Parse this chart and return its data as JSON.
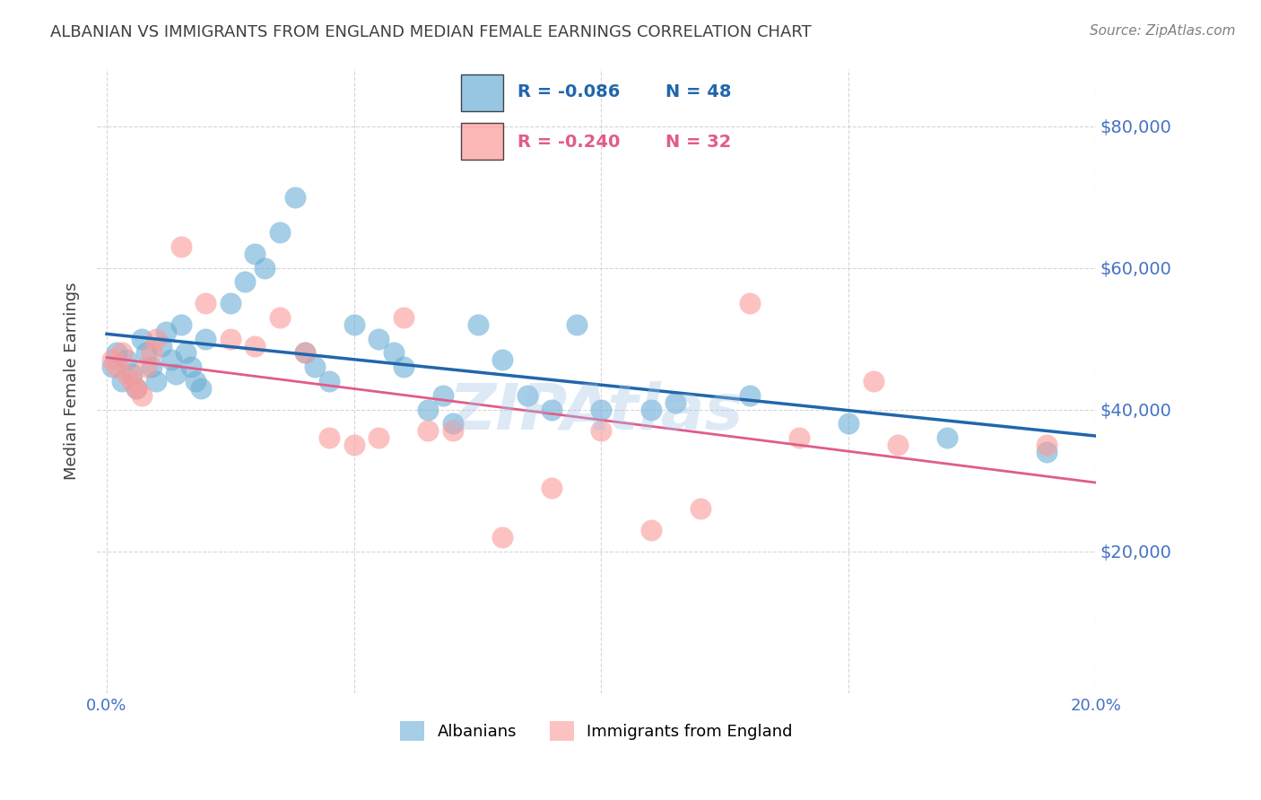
{
  "title": "ALBANIAN VS IMMIGRANTS FROM ENGLAND MEDIAN FEMALE EARNINGS CORRELATION CHART",
  "source": "Source: ZipAtlas.com",
  "xlabel": "",
  "ylabel": "Median Female Earnings",
  "watermark": "ZIPAtlas",
  "xlim": [
    0.0,
    0.2
  ],
  "ylim": [
    0,
    88000
  ],
  "yticks": [
    0,
    20000,
    40000,
    60000,
    80000
  ],
  "ytick_labels": [
    "",
    "$20,000",
    "$40,000",
    "$60,000",
    "$80,000"
  ],
  "xticks": [
    0.0,
    0.05,
    0.1,
    0.15,
    0.2
  ],
  "xtick_labels": [
    "0.0%",
    "",
    "",
    "",
    "20.0%"
  ],
  "legend_r1": "-0.086",
  "legend_n1": "48",
  "legend_r2": "-0.240",
  "legend_n2": "32",
  "label1": "Albanians",
  "label2": "Immigrants from England",
  "color1": "#6baed6",
  "color2": "#fb9a99",
  "line_color1": "#2166ac",
  "line_color2": "#e05c8a",
  "axis_color": "#4472c4",
  "title_color": "#404040",
  "grid_color": "#cccccc",
  "albanians_x": [
    0.001,
    0.002,
    0.003,
    0.004,
    0.005,
    0.006,
    0.007,
    0.008,
    0.009,
    0.01,
    0.011,
    0.012,
    0.013,
    0.014,
    0.015,
    0.016,
    0.017,
    0.018,
    0.019,
    0.02,
    0.025,
    0.028,
    0.03,
    0.032,
    0.035,
    0.038,
    0.04,
    0.042,
    0.045,
    0.05,
    0.055,
    0.058,
    0.06,
    0.065,
    0.068,
    0.07,
    0.075,
    0.08,
    0.085,
    0.09,
    0.095,
    0.1,
    0.11,
    0.115,
    0.13,
    0.15,
    0.17,
    0.19
  ],
  "albanians_y": [
    46000,
    48000,
    44000,
    47000,
    45000,
    43000,
    50000,
    48000,
    46000,
    44000,
    49000,
    51000,
    47000,
    45000,
    52000,
    48000,
    46000,
    44000,
    43000,
    50000,
    55000,
    58000,
    62000,
    60000,
    65000,
    70000,
    48000,
    46000,
    44000,
    52000,
    50000,
    48000,
    46000,
    40000,
    42000,
    38000,
    52000,
    47000,
    42000,
    40000,
    52000,
    40000,
    40000,
    41000,
    42000,
    38000,
    36000,
    34000
  ],
  "england_x": [
    0.001,
    0.002,
    0.003,
    0.004,
    0.005,
    0.006,
    0.007,
    0.008,
    0.009,
    0.01,
    0.015,
    0.02,
    0.025,
    0.03,
    0.035,
    0.04,
    0.045,
    0.05,
    0.055,
    0.06,
    0.065,
    0.07,
    0.08,
    0.09,
    0.1,
    0.11,
    0.12,
    0.13,
    0.14,
    0.155,
    0.16,
    0.19
  ],
  "england_y": [
    47000,
    46000,
    48000,
    45000,
    44000,
    43000,
    42000,
    46000,
    48000,
    50000,
    63000,
    55000,
    50000,
    49000,
    53000,
    48000,
    36000,
    35000,
    36000,
    53000,
    37000,
    37000,
    22000,
    29000,
    37000,
    23000,
    26000,
    55000,
    36000,
    44000,
    35000,
    35000
  ]
}
